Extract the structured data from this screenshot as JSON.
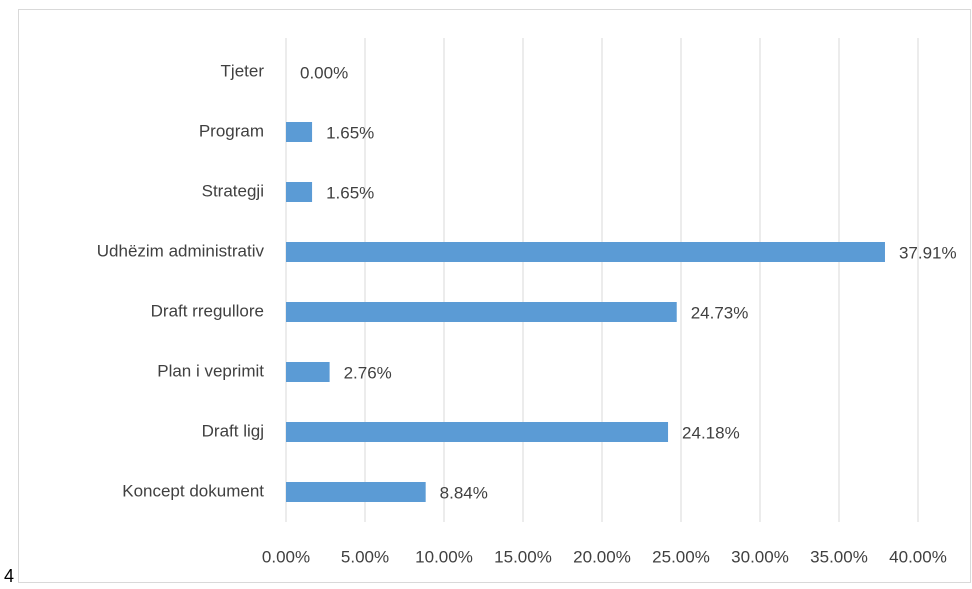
{
  "chart_data": {
    "type": "barh",
    "categories": [
      "Tjeter",
      "Program",
      "Strategji",
      "Udhëzim administrativ",
      "Draft rregullore",
      "Plan i veprimit",
      "Draft ligj",
      "Koncept dokument"
    ],
    "values": [
      0,
      1.65,
      1.65,
      37.91,
      24.73,
      2.76,
      24.18,
      8.84
    ],
    "value_labels": [
      "0.00%",
      "1.65%",
      "1.65%",
      "37.91%",
      "24.73%",
      "2.76%",
      "24.18%",
      "8.84%"
    ],
    "color": "#5b9bd5",
    "xlim": [
      0,
      40
    ],
    "xticks": [
      {
        "value": 0,
        "label": "0.00%"
      },
      {
        "value": 5,
        "label": "5.00%"
      },
      {
        "value": 10,
        "label": "10.00%"
      },
      {
        "value": 15,
        "label": "15.00%"
      },
      {
        "value": 20,
        "label": "20.00%"
      },
      {
        "value": 25,
        "label": "25.00%"
      },
      {
        "value": 30,
        "label": "30.00%"
      },
      {
        "value": 35,
        "label": "35.00%"
      },
      {
        "value": 40,
        "label": "40.00%"
      }
    ],
    "grid": true
  },
  "page_number": "4"
}
